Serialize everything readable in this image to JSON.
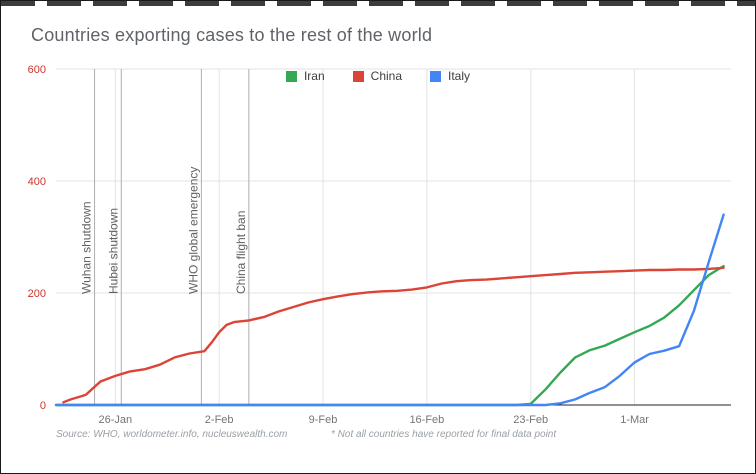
{
  "header": {
    "title": "Countries exporting cases to the rest of the world"
  },
  "footer": {
    "source": "Source: WHO, worldometer.info, nucleuswealth.com",
    "note": "* Not all countries have reported for final data point"
  },
  "chart_data": {
    "type": "line",
    "title": "Countries exporting cases to the rest of the world",
    "xlabel": "",
    "ylabel": "",
    "x_unit": "days since 22-Jan-2020",
    "xlim": [
      0,
      45.5
    ],
    "ylim": [
      0,
      600
    ],
    "yticks": [
      0,
      200,
      400,
      600
    ],
    "xticks": [
      {
        "day": 4,
        "label": "26-Jan"
      },
      {
        "day": 11,
        "label": "2-Feb"
      },
      {
        "day": 18,
        "label": "9-Feb"
      },
      {
        "day": 25,
        "label": "16-Feb"
      },
      {
        "day": 32,
        "label": "23-Feb"
      },
      {
        "day": 39,
        "label": "1-Mar"
      }
    ],
    "grid": true,
    "legend_position": "top-center",
    "colors": {
      "y_axis_labels": "#cc352c",
      "x_axis_labels": "#757575",
      "gridline": "#e3e3e3",
      "axis_line": "#212121",
      "annotation_line": "#adadad",
      "annotation_text": "#616161"
    },
    "annotations": [
      {
        "day": 2.6,
        "label": "Wuhan shutdown"
      },
      {
        "day": 4.4,
        "label": "Hubei shutdown"
      },
      {
        "day": 9.8,
        "label": "WHO global emergency"
      },
      {
        "day": 13.0,
        "label": "China flight ban"
      }
    ],
    "series": [
      {
        "name": "Iran",
        "color": "#34a853",
        "points": [
          [
            0,
            0
          ],
          [
            31,
            0
          ],
          [
            32,
            2
          ],
          [
            33,
            28
          ],
          [
            34,
            58
          ],
          [
            35,
            85
          ],
          [
            36,
            98
          ],
          [
            37,
            106
          ],
          [
            38,
            118
          ],
          [
            39,
            130
          ],
          [
            40,
            141
          ],
          [
            41,
            156
          ],
          [
            42,
            178
          ],
          [
            43,
            205
          ],
          [
            44,
            232
          ],
          [
            45,
            248
          ]
        ]
      },
      {
        "name": "China",
        "color": "#db4437",
        "points": [
          [
            0.5,
            5
          ],
          [
            1,
            10
          ],
          [
            2,
            18
          ],
          [
            2.5,
            30
          ],
          [
            3,
            42
          ],
          [
            4,
            52
          ],
          [
            5,
            60
          ],
          [
            6,
            64
          ],
          [
            7,
            72
          ],
          [
            8,
            85
          ],
          [
            9,
            92
          ],
          [
            10,
            96
          ],
          [
            10.5,
            112
          ],
          [
            11,
            130
          ],
          [
            11.5,
            143
          ],
          [
            12,
            148
          ],
          [
            13,
            151
          ],
          [
            14,
            157
          ],
          [
            15,
            167
          ],
          [
            16,
            175
          ],
          [
            17,
            183
          ],
          [
            18,
            189
          ],
          [
            19,
            194
          ],
          [
            20,
            198
          ],
          [
            21,
            201
          ],
          [
            22,
            203
          ],
          [
            23,
            204
          ],
          [
            24,
            206
          ],
          [
            25,
            210
          ],
          [
            26,
            217
          ],
          [
            27,
            221
          ],
          [
            28,
            223
          ],
          [
            29,
            224
          ],
          [
            30,
            226
          ],
          [
            31,
            228
          ],
          [
            32,
            230
          ],
          [
            33,
            232
          ],
          [
            34,
            234
          ],
          [
            35,
            236
          ],
          [
            36,
            237
          ],
          [
            37,
            238
          ],
          [
            38,
            239
          ],
          [
            39,
            240
          ],
          [
            40,
            241
          ],
          [
            41,
            241
          ],
          [
            42,
            242
          ],
          [
            43,
            242
          ],
          [
            44,
            243
          ],
          [
            45,
            245
          ]
        ]
      },
      {
        "name": "Italy",
        "color": "#4285f4",
        "points": [
          [
            0,
            0
          ],
          [
            33,
            0
          ],
          [
            34,
            3
          ],
          [
            35,
            10
          ],
          [
            36,
            22
          ],
          [
            37,
            32
          ],
          [
            38,
            52
          ],
          [
            39,
            76
          ],
          [
            40,
            91
          ],
          [
            41,
            97
          ],
          [
            42,
            105
          ],
          [
            43,
            168
          ],
          [
            44,
            255
          ],
          [
            45,
            340
          ]
        ]
      }
    ]
  }
}
